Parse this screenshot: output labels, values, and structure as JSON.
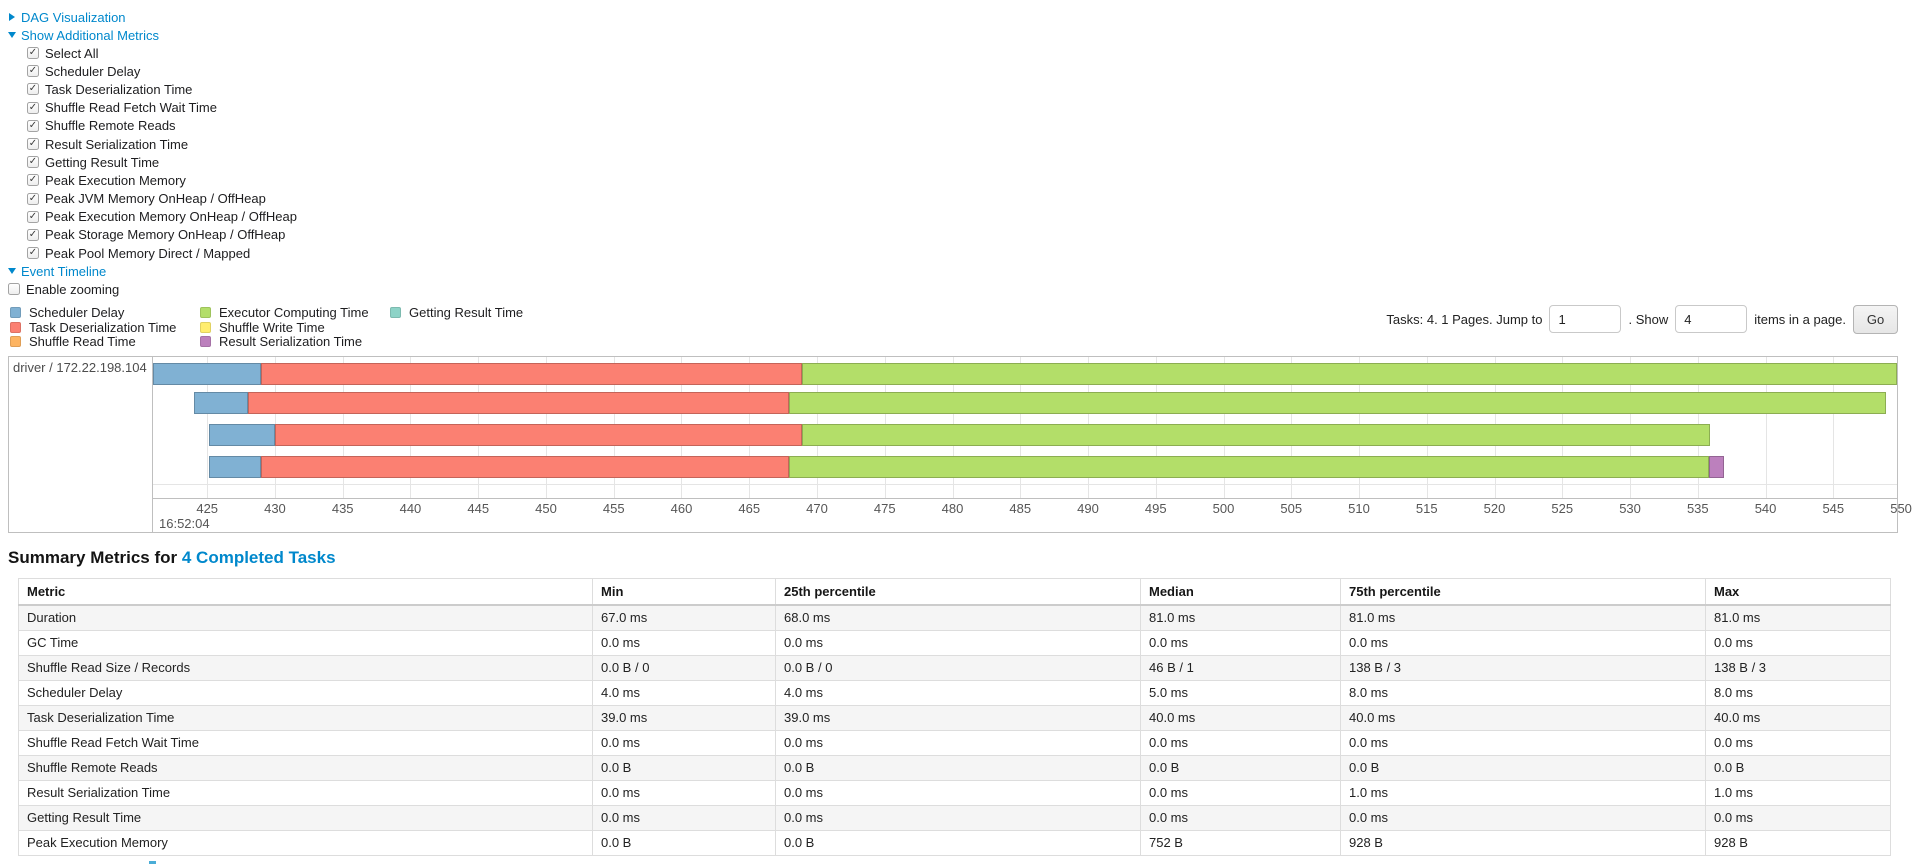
{
  "link_color": "#0088cc",
  "sections": {
    "dag": {
      "label": "DAG Visualization",
      "state": "collapsed"
    },
    "additional_metrics": {
      "label": "Show Additional Metrics",
      "state": "expanded"
    },
    "event_timeline": {
      "label": "Event Timeline",
      "state": "expanded"
    }
  },
  "metrics_checkboxes": [
    {
      "label": "Select All",
      "checked": true
    },
    {
      "label": "Scheduler Delay",
      "checked": true
    },
    {
      "label": "Task Deserialization Time",
      "checked": true
    },
    {
      "label": "Shuffle Read Fetch Wait Time",
      "checked": true
    },
    {
      "label": "Shuffle Remote Reads",
      "checked": true
    },
    {
      "label": "Result Serialization Time",
      "checked": true
    },
    {
      "label": "Getting Result Time",
      "checked": true
    },
    {
      "label": "Peak Execution Memory",
      "checked": true
    },
    {
      "label": "Peak JVM Memory OnHeap / OffHeap",
      "checked": true
    },
    {
      "label": "Peak Execution Memory OnHeap / OffHeap",
      "checked": true
    },
    {
      "label": "Peak Storage Memory OnHeap / OffHeap",
      "checked": true
    },
    {
      "label": "Peak Pool Memory Direct / Mapped",
      "checked": true
    }
  ],
  "enable_zooming": {
    "label": "Enable zooming",
    "checked": false
  },
  "legend": {
    "columns": [
      {
        "items": [
          {
            "label": "Scheduler Delay",
            "color": "#80B1D3"
          },
          {
            "label": "Task Deserialization Time",
            "color": "#FB8072"
          },
          {
            "label": "Shuffle Read Time",
            "color": "#FDB462"
          }
        ]
      },
      {
        "items": [
          {
            "label": "Executor Computing Time",
            "color": "#B3DE69"
          },
          {
            "label": "Shuffle Write Time",
            "color": "#FFED6F"
          },
          {
            "label": "Result Serialization Time",
            "color": "#BC80BD"
          }
        ]
      },
      {
        "items": [
          {
            "label": "Getting Result Time",
            "color": "#8DD3C7"
          }
        ]
      }
    ]
  },
  "pagination": {
    "summary_text": "Tasks: 4. 1 Pages. Jump to",
    "jump_input_value": "1",
    "between_text": ". Show",
    "show_input_value": "4",
    "suffix_text": "items in a page.",
    "go_button_label": "Go"
  },
  "timeline": {
    "group_label": "driver / 172.22.198.104",
    "axis": {
      "value_start": 421.0,
      "value_end": 549.7,
      "tick_interval": 5,
      "ticks": [
        425,
        430,
        435,
        440,
        445,
        450,
        455,
        460,
        465,
        470,
        475,
        480,
        485,
        490,
        495,
        500,
        505,
        510,
        515,
        520,
        525,
        530,
        535,
        540,
        545,
        550
      ],
      "major_time_label": "16:52:04"
    },
    "tasks": [
      {
        "segments": [
          {
            "name": "scheduler-delay",
            "color": "#80B1D3",
            "start": 421.0,
            "end": 429.0
          },
          {
            "name": "task-deserialization",
            "color": "#FB8072",
            "start": 429.0,
            "end": 468.9
          },
          {
            "name": "executor-computing",
            "color": "#B3DE69",
            "start": 468.9,
            "end": 550.0
          }
        ]
      },
      {
        "segments": [
          {
            "name": "scheduler-delay",
            "color": "#80B1D3",
            "start": 424.0,
            "end": 428.0
          },
          {
            "name": "task-deserialization",
            "color": "#FB8072",
            "start": 428.0,
            "end": 467.9
          },
          {
            "name": "executor-computing",
            "color": "#B3DE69",
            "start": 467.9,
            "end": 548.9
          }
        ]
      },
      {
        "segments": [
          {
            "name": "scheduler-delay",
            "color": "#80B1D3",
            "start": 425.1,
            "end": 430.0
          },
          {
            "name": "task-deserialization",
            "color": "#FB8072",
            "start": 430.0,
            "end": 468.9
          },
          {
            "name": "executor-computing",
            "color": "#B3DE69",
            "start": 468.9,
            "end": 535.9
          }
        ]
      },
      {
        "segments": [
          {
            "name": "scheduler-delay",
            "color": "#80B1D3",
            "start": 425.1,
            "end": 429.0
          },
          {
            "name": "task-deserialization",
            "color": "#FB8072",
            "start": 429.0,
            "end": 467.9
          },
          {
            "name": "executor-computing",
            "color": "#B3DE69",
            "start": 467.9,
            "end": 535.8
          },
          {
            "name": "result-serialization",
            "color": "#BC80BD",
            "start": 535.8,
            "end": 536.9
          }
        ]
      }
    ]
  },
  "summary": {
    "title_prefix": "Summary Metrics for",
    "title_link": "4 Completed Tasks",
    "table": {
      "columns": [
        "Metric",
        "Min",
        "25th percentile",
        "Median",
        "75th percentile",
        "Max"
      ],
      "rows": [
        [
          "Duration",
          "67.0 ms",
          "68.0 ms",
          "81.0 ms",
          "81.0 ms",
          "81.0 ms"
        ],
        [
          "GC Time",
          "0.0 ms",
          "0.0 ms",
          "0.0 ms",
          "0.0 ms",
          "0.0 ms"
        ],
        [
          "Shuffle Read Size / Records",
          "0.0 B / 0",
          "0.0 B / 0",
          "46 B / 1",
          "138 B / 3",
          "138 B / 3"
        ],
        [
          "Scheduler Delay",
          "4.0 ms",
          "4.0 ms",
          "5.0 ms",
          "8.0 ms",
          "8.0 ms"
        ],
        [
          "Task Deserialization Time",
          "39.0 ms",
          "39.0 ms",
          "40.0 ms",
          "40.0 ms",
          "40.0 ms"
        ],
        [
          "Shuffle Read Fetch Wait Time",
          "0.0 ms",
          "0.0 ms",
          "0.0 ms",
          "0.0 ms",
          "0.0 ms"
        ],
        [
          "Shuffle Remote Reads",
          "0.0 B",
          "0.0 B",
          "0.0 B",
          "0.0 B",
          "0.0 B"
        ],
        [
          "Result Serialization Time",
          "0.0 ms",
          "0.0 ms",
          "0.0 ms",
          "1.0 ms",
          "1.0 ms"
        ],
        [
          "Getting Result Time",
          "0.0 ms",
          "0.0 ms",
          "0.0 ms",
          "0.0 ms",
          "0.0 ms"
        ],
        [
          "Peak Execution Memory",
          "0.0 B",
          "0.0 B",
          "752 B",
          "928 B",
          "928 B"
        ]
      ]
    }
  }
}
